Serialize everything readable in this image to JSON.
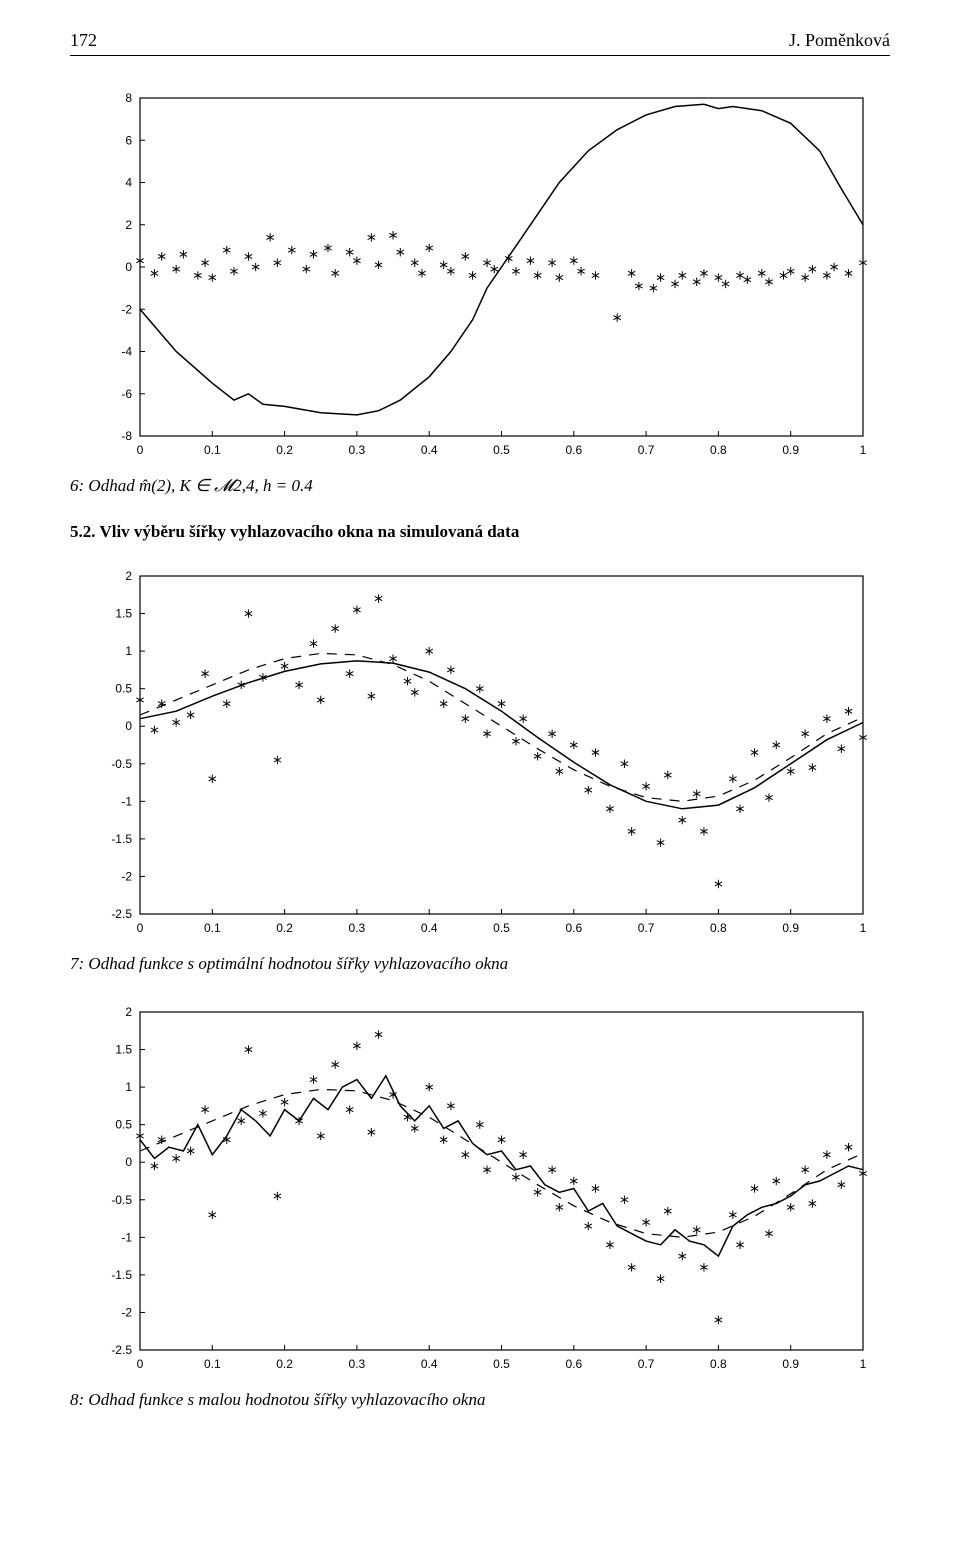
{
  "header": {
    "page_number": "172",
    "author": "J. Poměnková"
  },
  "captions": {
    "fig6": "6: Odhad m̂(2), K ∈ 𝓜2,4, h = 0.4",
    "section52": "5.2. Vliv výběru šířky vyhlazovacího okna na simulovaná data",
    "fig7": "7: Odhad funkce s optimální hodnotou šířky vyhlazovacího okna",
    "fig8": "8: Odhad funkce s malou hodnotou šířky vyhlazovacího okna"
  },
  "chart1": {
    "type": "scatter+line",
    "xlim": [
      0,
      1
    ],
    "ylim": [
      -8,
      8
    ],
    "xticks": [
      0,
      0.1,
      0.2,
      0.3,
      0.4,
      0.5,
      0.6,
      0.7,
      0.8,
      0.9,
      1
    ],
    "yticks": [
      -8,
      -6,
      -4,
      -2,
      0,
      2,
      4,
      6,
      8
    ],
    "tick_fontsize": 12,
    "border_color": "#000000",
    "marker": "*",
    "marker_color": "#000000",
    "line_color": "#000000",
    "line_width": 1.5,
    "scatter": [
      [
        0.0,
        0.3
      ],
      [
        0.02,
        -0.3
      ],
      [
        0.03,
        0.5
      ],
      [
        0.05,
        -0.1
      ],
      [
        0.06,
        0.6
      ],
      [
        0.08,
        -0.4
      ],
      [
        0.09,
        0.2
      ],
      [
        0.1,
        -0.5
      ],
      [
        0.12,
        0.8
      ],
      [
        0.13,
        -0.2
      ],
      [
        0.15,
        0.5
      ],
      [
        0.16,
        0.0
      ],
      [
        0.18,
        1.4
      ],
      [
        0.19,
        0.2
      ],
      [
        0.21,
        0.8
      ],
      [
        0.23,
        -0.1
      ],
      [
        0.24,
        0.6
      ],
      [
        0.26,
        0.9
      ],
      [
        0.27,
        -0.3
      ],
      [
        0.29,
        0.7
      ],
      [
        0.3,
        0.3
      ],
      [
        0.32,
        1.4
      ],
      [
        0.33,
        0.1
      ],
      [
        0.35,
        1.5
      ],
      [
        0.36,
        0.7
      ],
      [
        0.38,
        0.2
      ],
      [
        0.39,
        -0.3
      ],
      [
        0.4,
        0.9
      ],
      [
        0.42,
        0.1
      ],
      [
        0.43,
        -0.2
      ],
      [
        0.45,
        0.5
      ],
      [
        0.46,
        -0.4
      ],
      [
        0.48,
        0.2
      ],
      [
        0.49,
        -0.1
      ],
      [
        0.51,
        0.4
      ],
      [
        0.52,
        -0.2
      ],
      [
        0.54,
        0.3
      ],
      [
        0.55,
        -0.4
      ],
      [
        0.57,
        0.2
      ],
      [
        0.58,
        -0.5
      ],
      [
        0.6,
        0.3
      ],
      [
        0.61,
        -0.2
      ],
      [
        0.63,
        -0.4
      ],
      [
        0.66,
        -2.4
      ],
      [
        0.68,
        -0.3
      ],
      [
        0.69,
        -0.9
      ],
      [
        0.71,
        -1.0
      ],
      [
        0.72,
        -0.5
      ],
      [
        0.74,
        -0.8
      ],
      [
        0.75,
        -0.4
      ],
      [
        0.77,
        -0.7
      ],
      [
        0.78,
        -0.3
      ],
      [
        0.8,
        -0.5
      ],
      [
        0.81,
        -0.8
      ],
      [
        0.83,
        -0.4
      ],
      [
        0.84,
        -0.6
      ],
      [
        0.86,
        -0.3
      ],
      [
        0.87,
        -0.7
      ],
      [
        0.89,
        -0.4
      ],
      [
        0.9,
        -0.2
      ],
      [
        0.92,
        -0.5
      ],
      [
        0.93,
        -0.1
      ],
      [
        0.95,
        -0.4
      ],
      [
        0.96,
        0.0
      ],
      [
        0.98,
        -0.3
      ],
      [
        1.0,
        0.2
      ]
    ],
    "line": [
      [
        0.0,
        -2.0
      ],
      [
        0.05,
        -4.0
      ],
      [
        0.1,
        -5.5
      ],
      [
        0.13,
        -6.3
      ],
      [
        0.15,
        -6.0
      ],
      [
        0.17,
        -6.5
      ],
      [
        0.2,
        -6.6
      ],
      [
        0.25,
        -6.9
      ],
      [
        0.3,
        -7.0
      ],
      [
        0.33,
        -6.8
      ],
      [
        0.36,
        -6.3
      ],
      [
        0.4,
        -5.2
      ],
      [
        0.43,
        -4.0
      ],
      [
        0.46,
        -2.5
      ],
      [
        0.48,
        -1.0
      ],
      [
        0.5,
        0.0
      ],
      [
        0.52,
        1.0
      ],
      [
        0.55,
        2.5
      ],
      [
        0.58,
        4.0
      ],
      [
        0.62,
        5.5
      ],
      [
        0.66,
        6.5
      ],
      [
        0.7,
        7.2
      ],
      [
        0.74,
        7.6
      ],
      [
        0.78,
        7.7
      ],
      [
        0.8,
        7.5
      ],
      [
        0.82,
        7.6
      ],
      [
        0.86,
        7.4
      ],
      [
        0.9,
        6.8
      ],
      [
        0.94,
        5.5
      ],
      [
        0.97,
        3.7
      ],
      [
        1.0,
        2.0
      ]
    ]
  },
  "chart2": {
    "type": "scatter+line",
    "xlim": [
      0,
      1
    ],
    "ylim": [
      -2.5,
      2
    ],
    "xticks": [
      0,
      0.1,
      0.2,
      0.3,
      0.4,
      0.5,
      0.6,
      0.7,
      0.8,
      0.9,
      1
    ],
    "yticks": [
      -2.5,
      -2,
      -1.5,
      -1,
      -0.5,
      0,
      0.5,
      1,
      1.5,
      2
    ],
    "tick_fontsize": 12,
    "border_color": "#000000",
    "marker": "*",
    "marker_color": "#000000",
    "line_color": "#000000",
    "line_width_solid": 1.5,
    "line_width_dash": 1.2,
    "scatter": [
      [
        0.0,
        0.35
      ],
      [
        0.02,
        -0.05
      ],
      [
        0.03,
        0.3
      ],
      [
        0.05,
        0.05
      ],
      [
        0.07,
        0.15
      ],
      [
        0.09,
        0.7
      ],
      [
        0.1,
        -0.7
      ],
      [
        0.12,
        0.3
      ],
      [
        0.14,
        0.55
      ],
      [
        0.15,
        1.5
      ],
      [
        0.17,
        0.65
      ],
      [
        0.19,
        -0.45
      ],
      [
        0.2,
        0.8
      ],
      [
        0.22,
        0.55
      ],
      [
        0.24,
        1.1
      ],
      [
        0.25,
        0.35
      ],
      [
        0.27,
        1.3
      ],
      [
        0.29,
        0.7
      ],
      [
        0.3,
        1.55
      ],
      [
        0.32,
        0.4
      ],
      [
        0.33,
        1.7
      ],
      [
        0.35,
        0.9
      ],
      [
        0.37,
        0.6
      ],
      [
        0.38,
        0.45
      ],
      [
        0.4,
        1.0
      ],
      [
        0.42,
        0.3
      ],
      [
        0.43,
        0.75
      ],
      [
        0.45,
        0.1
      ],
      [
        0.47,
        0.5
      ],
      [
        0.48,
        -0.1
      ],
      [
        0.5,
        0.3
      ],
      [
        0.52,
        -0.2
      ],
      [
        0.53,
        0.1
      ],
      [
        0.55,
        -0.4
      ],
      [
        0.57,
        -0.1
      ],
      [
        0.58,
        -0.6
      ],
      [
        0.6,
        -0.25
      ],
      [
        0.62,
        -0.85
      ],
      [
        0.63,
        -0.35
      ],
      [
        0.65,
        -1.1
      ],
      [
        0.67,
        -0.5
      ],
      [
        0.68,
        -1.4
      ],
      [
        0.7,
        -0.8
      ],
      [
        0.72,
        -1.55
      ],
      [
        0.73,
        -0.65
      ],
      [
        0.75,
        -1.25
      ],
      [
        0.77,
        -0.9
      ],
      [
        0.78,
        -1.4
      ],
      [
        0.8,
        -2.1
      ],
      [
        0.82,
        -0.7
      ],
      [
        0.83,
        -1.1
      ],
      [
        0.85,
        -0.35
      ],
      [
        0.87,
        -0.95
      ],
      [
        0.88,
        -0.25
      ],
      [
        0.9,
        -0.6
      ],
      [
        0.92,
        -0.1
      ],
      [
        0.93,
        -0.55
      ],
      [
        0.95,
        0.1
      ],
      [
        0.97,
        -0.3
      ],
      [
        0.98,
        0.2
      ],
      [
        1.0,
        -0.15
      ]
    ],
    "line_solid": [
      [
        0.0,
        0.1
      ],
      [
        0.05,
        0.2
      ],
      [
        0.1,
        0.4
      ],
      [
        0.15,
        0.58
      ],
      [
        0.2,
        0.73
      ],
      [
        0.25,
        0.83
      ],
      [
        0.3,
        0.87
      ],
      [
        0.35,
        0.84
      ],
      [
        0.4,
        0.72
      ],
      [
        0.45,
        0.5
      ],
      [
        0.5,
        0.2
      ],
      [
        0.55,
        -0.15
      ],
      [
        0.6,
        -0.48
      ],
      [
        0.65,
        -0.78
      ],
      [
        0.7,
        -1.0
      ],
      [
        0.75,
        -1.1
      ],
      [
        0.8,
        -1.05
      ],
      [
        0.85,
        -0.82
      ],
      [
        0.9,
        -0.5
      ],
      [
        0.95,
        -0.18
      ],
      [
        1.0,
        0.05
      ]
    ],
    "line_dash": [
      [
        0.0,
        0.15
      ],
      [
        0.05,
        0.35
      ],
      [
        0.1,
        0.55
      ],
      [
        0.15,
        0.75
      ],
      [
        0.2,
        0.9
      ],
      [
        0.25,
        0.97
      ],
      [
        0.3,
        0.95
      ],
      [
        0.35,
        0.82
      ],
      [
        0.4,
        0.6
      ],
      [
        0.45,
        0.3
      ],
      [
        0.5,
        0.0
      ],
      [
        0.55,
        -0.3
      ],
      [
        0.6,
        -0.58
      ],
      [
        0.65,
        -0.8
      ],
      [
        0.7,
        -0.95
      ],
      [
        0.75,
        -1.0
      ],
      [
        0.8,
        -0.93
      ],
      [
        0.85,
        -0.72
      ],
      [
        0.9,
        -0.42
      ],
      [
        0.95,
        -0.1
      ],
      [
        1.0,
        0.12
      ]
    ]
  },
  "chart3": {
    "type": "scatter+line",
    "xlim": [
      0,
      1
    ],
    "ylim": [
      -2.5,
      2
    ],
    "xticks": [
      0,
      0.1,
      0.2,
      0.3,
      0.4,
      0.5,
      0.6,
      0.7,
      0.8,
      0.9,
      1
    ],
    "yticks": [
      -2.5,
      -2,
      -1.5,
      -1,
      -0.5,
      0,
      0.5,
      1,
      1.5,
      2
    ],
    "tick_fontsize": 12,
    "border_color": "#000000",
    "marker": "*",
    "marker_color": "#000000",
    "line_color": "#000000",
    "line_width_solid": 1.5,
    "line_width_dash": 1.2,
    "scatter": [
      [
        0.0,
        0.35
      ],
      [
        0.02,
        -0.05
      ],
      [
        0.03,
        0.3
      ],
      [
        0.05,
        0.05
      ],
      [
        0.07,
        0.15
      ],
      [
        0.09,
        0.7
      ],
      [
        0.1,
        -0.7
      ],
      [
        0.12,
        0.3
      ],
      [
        0.14,
        0.55
      ],
      [
        0.15,
        1.5
      ],
      [
        0.17,
        0.65
      ],
      [
        0.19,
        -0.45
      ],
      [
        0.2,
        0.8
      ],
      [
        0.22,
        0.55
      ],
      [
        0.24,
        1.1
      ],
      [
        0.25,
        0.35
      ],
      [
        0.27,
        1.3
      ],
      [
        0.29,
        0.7
      ],
      [
        0.3,
        1.55
      ],
      [
        0.32,
        0.4
      ],
      [
        0.33,
        1.7
      ],
      [
        0.35,
        0.9
      ],
      [
        0.37,
        0.6
      ],
      [
        0.38,
        0.45
      ],
      [
        0.4,
        1.0
      ],
      [
        0.42,
        0.3
      ],
      [
        0.43,
        0.75
      ],
      [
        0.45,
        0.1
      ],
      [
        0.47,
        0.5
      ],
      [
        0.48,
        -0.1
      ],
      [
        0.5,
        0.3
      ],
      [
        0.52,
        -0.2
      ],
      [
        0.53,
        0.1
      ],
      [
        0.55,
        -0.4
      ],
      [
        0.57,
        -0.1
      ],
      [
        0.58,
        -0.6
      ],
      [
        0.6,
        -0.25
      ],
      [
        0.62,
        -0.85
      ],
      [
        0.63,
        -0.35
      ],
      [
        0.65,
        -1.1
      ],
      [
        0.67,
        -0.5
      ],
      [
        0.68,
        -1.4
      ],
      [
        0.7,
        -0.8
      ],
      [
        0.72,
        -1.55
      ],
      [
        0.73,
        -0.65
      ],
      [
        0.75,
        -1.25
      ],
      [
        0.77,
        -0.9
      ],
      [
        0.78,
        -1.4
      ],
      [
        0.8,
        -2.1
      ],
      [
        0.82,
        -0.7
      ],
      [
        0.83,
        -1.1
      ],
      [
        0.85,
        -0.35
      ],
      [
        0.87,
        -0.95
      ],
      [
        0.88,
        -0.25
      ],
      [
        0.9,
        -0.6
      ],
      [
        0.92,
        -0.1
      ],
      [
        0.93,
        -0.55
      ],
      [
        0.95,
        0.1
      ],
      [
        0.97,
        -0.3
      ],
      [
        0.98,
        0.2
      ],
      [
        1.0,
        -0.15
      ]
    ],
    "line_solid": [
      [
        0.0,
        0.3
      ],
      [
        0.02,
        0.05
      ],
      [
        0.04,
        0.2
      ],
      [
        0.06,
        0.15
      ],
      [
        0.08,
        0.5
      ],
      [
        0.1,
        0.1
      ],
      [
        0.12,
        0.35
      ],
      [
        0.14,
        0.7
      ],
      [
        0.16,
        0.55
      ],
      [
        0.18,
        0.35
      ],
      [
        0.2,
        0.7
      ],
      [
        0.22,
        0.55
      ],
      [
        0.24,
        0.85
      ],
      [
        0.26,
        0.7
      ],
      [
        0.28,
        1.0
      ],
      [
        0.3,
        1.1
      ],
      [
        0.32,
        0.85
      ],
      [
        0.34,
        1.15
      ],
      [
        0.36,
        0.75
      ],
      [
        0.38,
        0.55
      ],
      [
        0.4,
        0.75
      ],
      [
        0.42,
        0.45
      ],
      [
        0.44,
        0.55
      ],
      [
        0.46,
        0.25
      ],
      [
        0.48,
        0.1
      ],
      [
        0.5,
        0.15
      ],
      [
        0.52,
        -0.1
      ],
      [
        0.54,
        -0.05
      ],
      [
        0.56,
        -0.3
      ],
      [
        0.58,
        -0.4
      ],
      [
        0.6,
        -0.35
      ],
      [
        0.62,
        -0.65
      ],
      [
        0.64,
        -0.55
      ],
      [
        0.66,
        -0.85
      ],
      [
        0.68,
        -0.95
      ],
      [
        0.7,
        -1.05
      ],
      [
        0.72,
        -1.1
      ],
      [
        0.74,
        -0.9
      ],
      [
        0.76,
        -1.05
      ],
      [
        0.78,
        -1.1
      ],
      [
        0.8,
        -1.25
      ],
      [
        0.82,
        -0.85
      ],
      [
        0.84,
        -0.7
      ],
      [
        0.86,
        -0.6
      ],
      [
        0.88,
        -0.55
      ],
      [
        0.9,
        -0.45
      ],
      [
        0.92,
        -0.3
      ],
      [
        0.94,
        -0.25
      ],
      [
        0.96,
        -0.15
      ],
      [
        0.98,
        -0.05
      ],
      [
        1.0,
        -0.1
      ]
    ],
    "line_dash": [
      [
        0.0,
        0.15
      ],
      [
        0.05,
        0.35
      ],
      [
        0.1,
        0.55
      ],
      [
        0.15,
        0.75
      ],
      [
        0.2,
        0.9
      ],
      [
        0.25,
        0.97
      ],
      [
        0.3,
        0.95
      ],
      [
        0.35,
        0.82
      ],
      [
        0.4,
        0.6
      ],
      [
        0.45,
        0.3
      ],
      [
        0.5,
        0.0
      ],
      [
        0.55,
        -0.3
      ],
      [
        0.6,
        -0.58
      ],
      [
        0.65,
        -0.8
      ],
      [
        0.7,
        -0.95
      ],
      [
        0.75,
        -1.0
      ],
      [
        0.8,
        -0.93
      ],
      [
        0.85,
        -0.72
      ],
      [
        0.9,
        -0.42
      ],
      [
        0.95,
        -0.1
      ],
      [
        1.0,
        0.12
      ]
    ]
  }
}
